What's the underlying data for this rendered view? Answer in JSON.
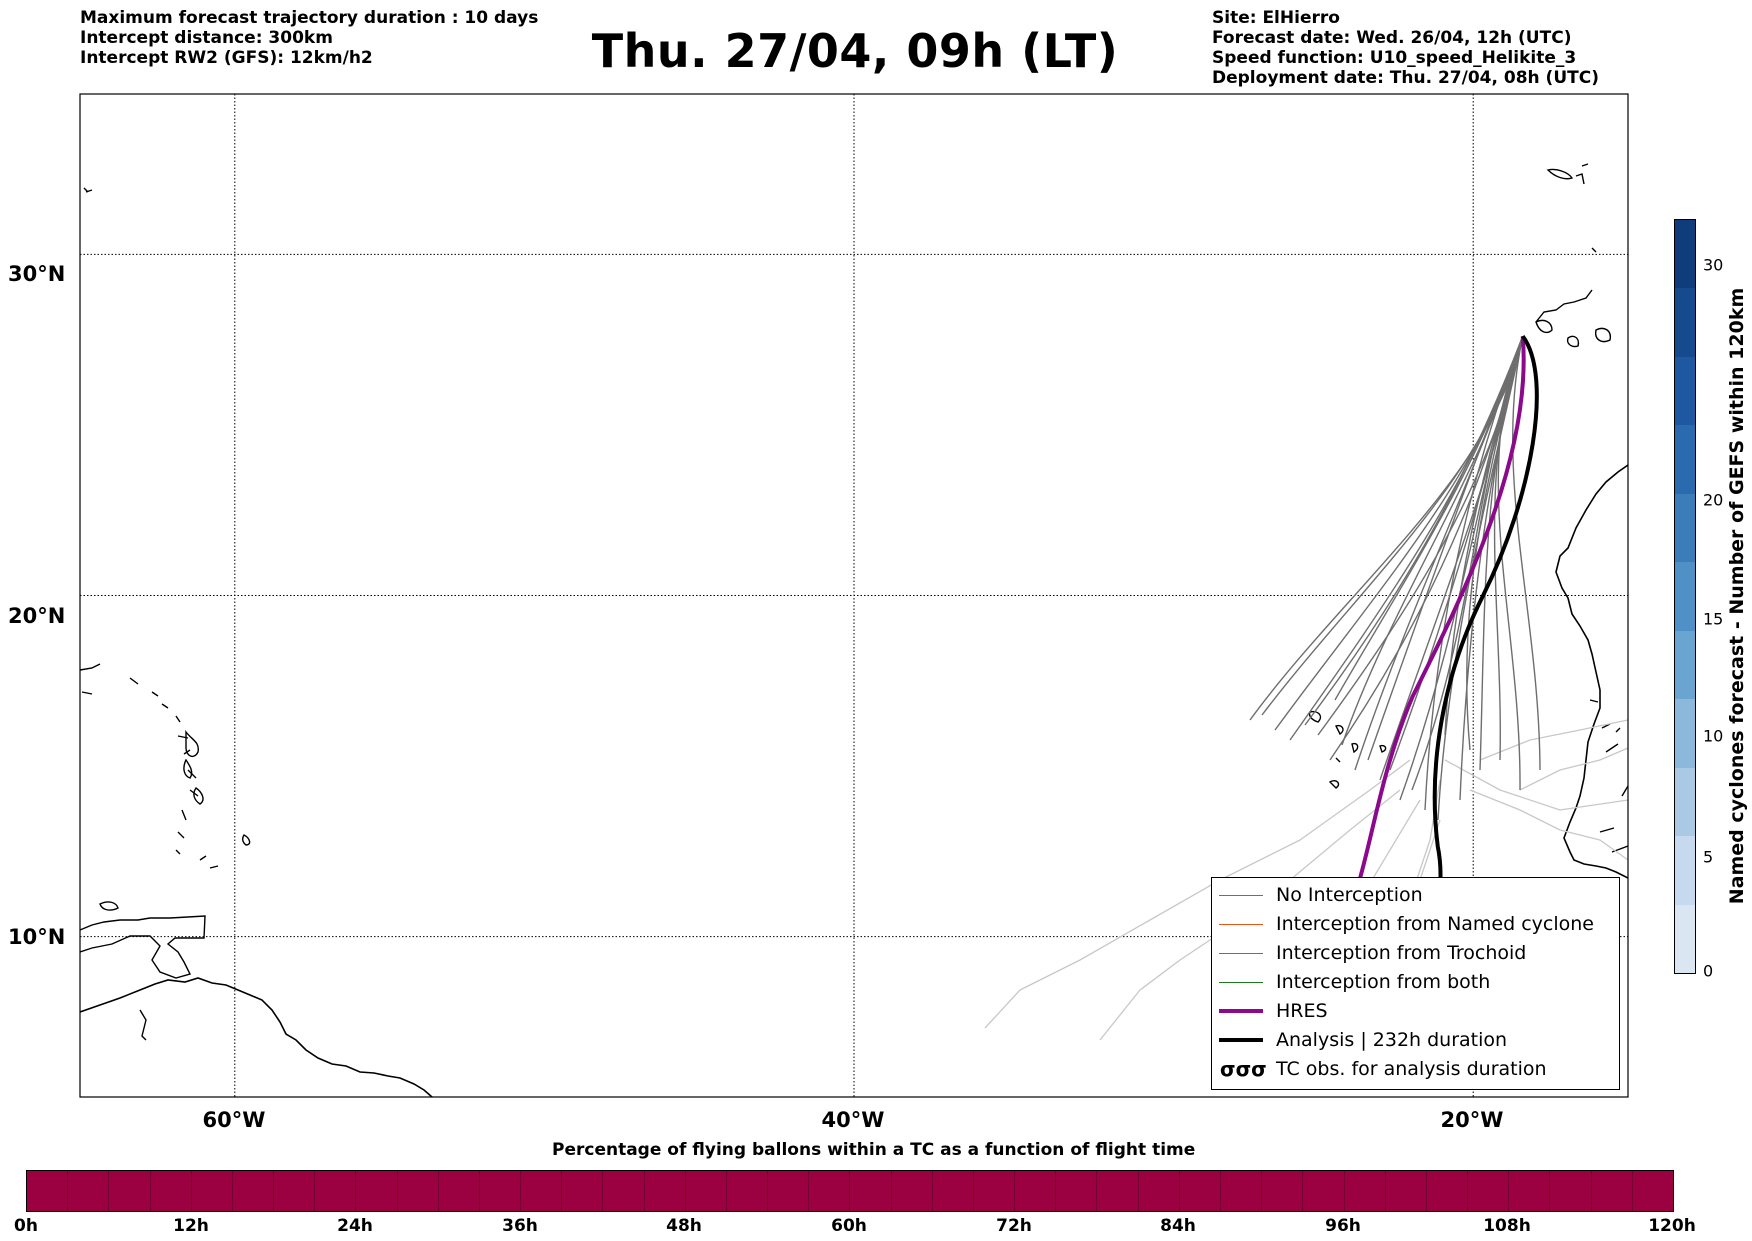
{
  "header": {
    "left_lines": [
      "Maximum forecast trajectory duration : 10 days",
      "Intercept distance: 300km",
      "Intercept RW2 (GFS):  12km/h2"
    ],
    "title": "Thu. 27/04, 09h (LT)",
    "right_lines": [
      "Site: ElHierro",
      "Forecast date: Wed. 26/04, 12h (UTC)",
      "Speed function: U10_speed_Helikite_3",
      "Deployment date: Thu. 27/04, 08h (UTC)"
    ]
  },
  "map": {
    "lat_labels": [
      "30°N",
      "20°N",
      "10°N"
    ],
    "lon_labels": [
      "60°W",
      "40°W",
      "20°W"
    ],
    "lat_range": [
      5.3,
      34.7
    ],
    "lon_range": [
      -65,
      -15
    ],
    "grid_lats": [
      30,
      20,
      10
    ],
    "grid_lons": [
      -60,
      -40,
      -20
    ],
    "launch_site": {
      "lat": 27.6,
      "lon": -18.4
    }
  },
  "legend": {
    "items": [
      {
        "label": "No Interception",
        "color": "#6e6e6e",
        "width": 1.5
      },
      {
        "label": "Interception from Named cyclone",
        "color": "#e8541a",
        "width": 1.5
      },
      {
        "label": "Interception from Trochoid",
        "color": "#7a7a1e",
        "width": 1.5
      },
      {
        "label": "Interception from both",
        "color": "#1e7a1e",
        "width": 1.5
      },
      {
        "label": "HRES",
        "color": "#8b0a8b",
        "width": 4
      },
      {
        "label": "Analysis | 232h duration",
        "color": "#000000",
        "width": 4
      }
    ],
    "tc_obs": {
      "symbol": "σσσ",
      "label": "TC obs. for analysis duration"
    }
  },
  "colorbar_vertical": {
    "label": "Named cyclones forecast - Number of GEFS within 120km",
    "ticks": [
      "0",
      "5",
      "10",
      "15",
      "20",
      "30"
    ],
    "range": [
      0,
      33
    ],
    "colors": [
      "#dbe6f3",
      "#c6d9ee",
      "#aac9e4",
      "#8cb8dc",
      "#6aa4d1",
      "#4f91c6",
      "#3a7db9",
      "#2a6aae",
      "#1d58a0",
      "#154a8e",
      "#0f3d7b"
    ]
  },
  "colorbar_horizontal": {
    "title": "Percentage of flying ballons within a TC as a function of flight time",
    "ticks": [
      "0h",
      "12h",
      "24h",
      "36h",
      "48h",
      "60h",
      "72h",
      "84h",
      "96h",
      "108h",
      "120h"
    ],
    "fill_color": "#9b0040",
    "segments": 40
  }
}
